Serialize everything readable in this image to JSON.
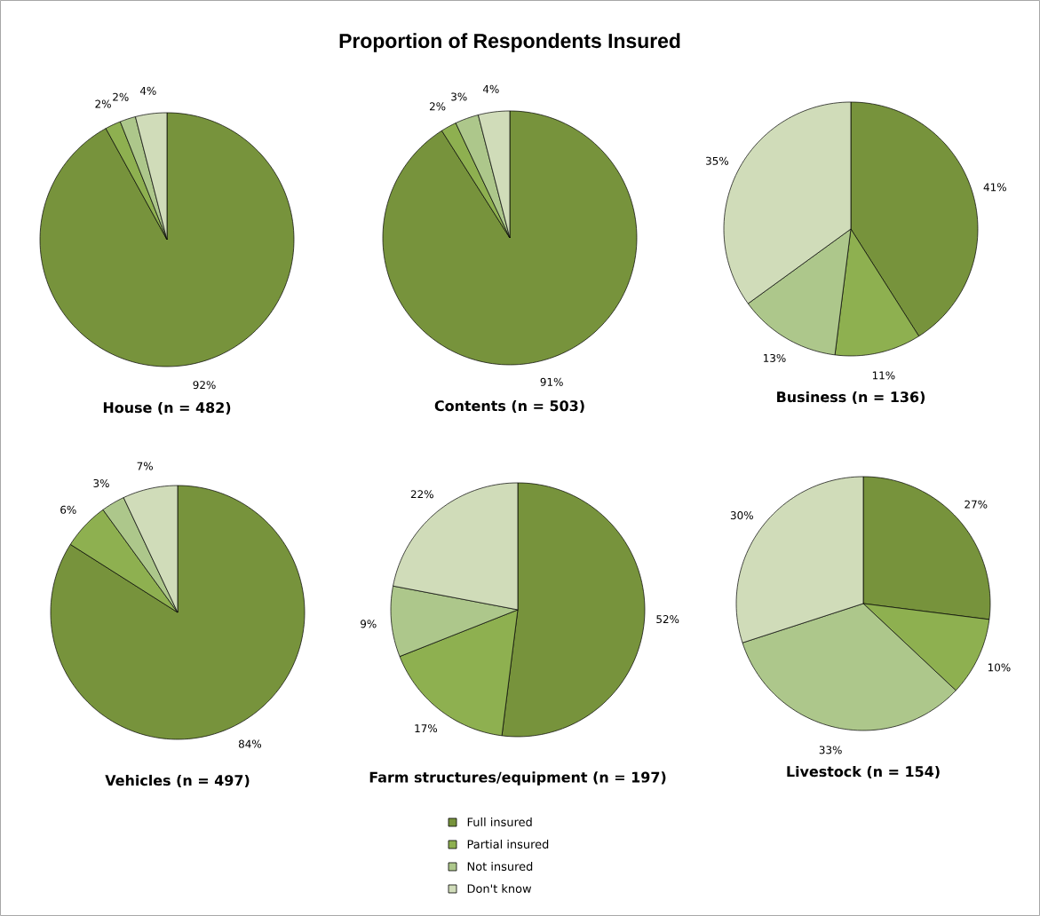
{
  "chart_data": [
    {
      "type": "pie",
      "xlabel": "House (n = 482)",
      "categories": [
        "Full insured",
        "Partial insured",
        "Not insured",
        "Don't know"
      ],
      "values": [
        92,
        2,
        2,
        4
      ],
      "value_labels": [
        "92%",
        "2%",
        "2%",
        "4%"
      ],
      "colors": [
        "#77933c",
        "#8eb050",
        "#adc78b",
        "#d0dcb9"
      ],
      "legend": "bottom"
    },
    {
      "type": "pie",
      "title": "Proportion of Respondents Insured",
      "xlabel": "Contents (n = 503)",
      "categories": [
        null,
        null,
        null,
        null
      ],
      "values": [
        91,
        2,
        3,
        4
      ],
      "value_labels": [
        "91%",
        "2%",
        "3%",
        "4%"
      ],
      "colors": [
        "#77933c",
        "#8eb050",
        "#adc78b",
        "#d0dcb9"
      ]
    },
    {
      "type": "pie",
      "xlabel": "Business (n = 136)",
      "categories": [
        null,
        null,
        null,
        null
      ],
      "values": [
        41,
        11,
        13,
        35
      ],
      "value_labels": [
        "41%",
        "11%",
        "13%",
        "35%"
      ],
      "colors": [
        "#77933c",
        "#8eb050",
        "#adc78b",
        "#d0dcb9"
      ]
    },
    {
      "type": "pie",
      "xlabel": "Vehicles (n = 497)",
      "categories": [
        null,
        null,
        null,
        null
      ],
      "values": [
        84,
        6,
        3,
        7
      ],
      "value_labels": [
        "84%",
        "6%",
        "3%",
        "7%"
      ],
      "colors": [
        "#77933c",
        "#8eb050",
        "#adc78b",
        "#d0dcb9"
      ]
    },
    {
      "type": "pie",
      "xlabel": "Farm structures/equipment (n = 197)",
      "categories": [
        null,
        null,
        null,
        null
      ],
      "values": [
        52,
        17,
        9,
        22
      ],
      "value_labels": [
        "52%",
        "17%",
        "9%",
        "22%"
      ],
      "colors": [
        "#77933c",
        "#8eb050",
        "#adc78b",
        "#d0dcb9"
      ]
    },
    {
      "type": "pie",
      "xlabel": "Livestock (n = 154)",
      "categories": [
        null,
        null,
        null,
        null
      ],
      "values": [
        27,
        10,
        33,
        30
      ],
      "value_labels": [
        "27%",
        "10%",
        "33%",
        "30%"
      ],
      "colors": [
        "#77933c",
        "#8eb050",
        "#adc78b",
        "#d0dcb9"
      ]
    }
  ]
}
